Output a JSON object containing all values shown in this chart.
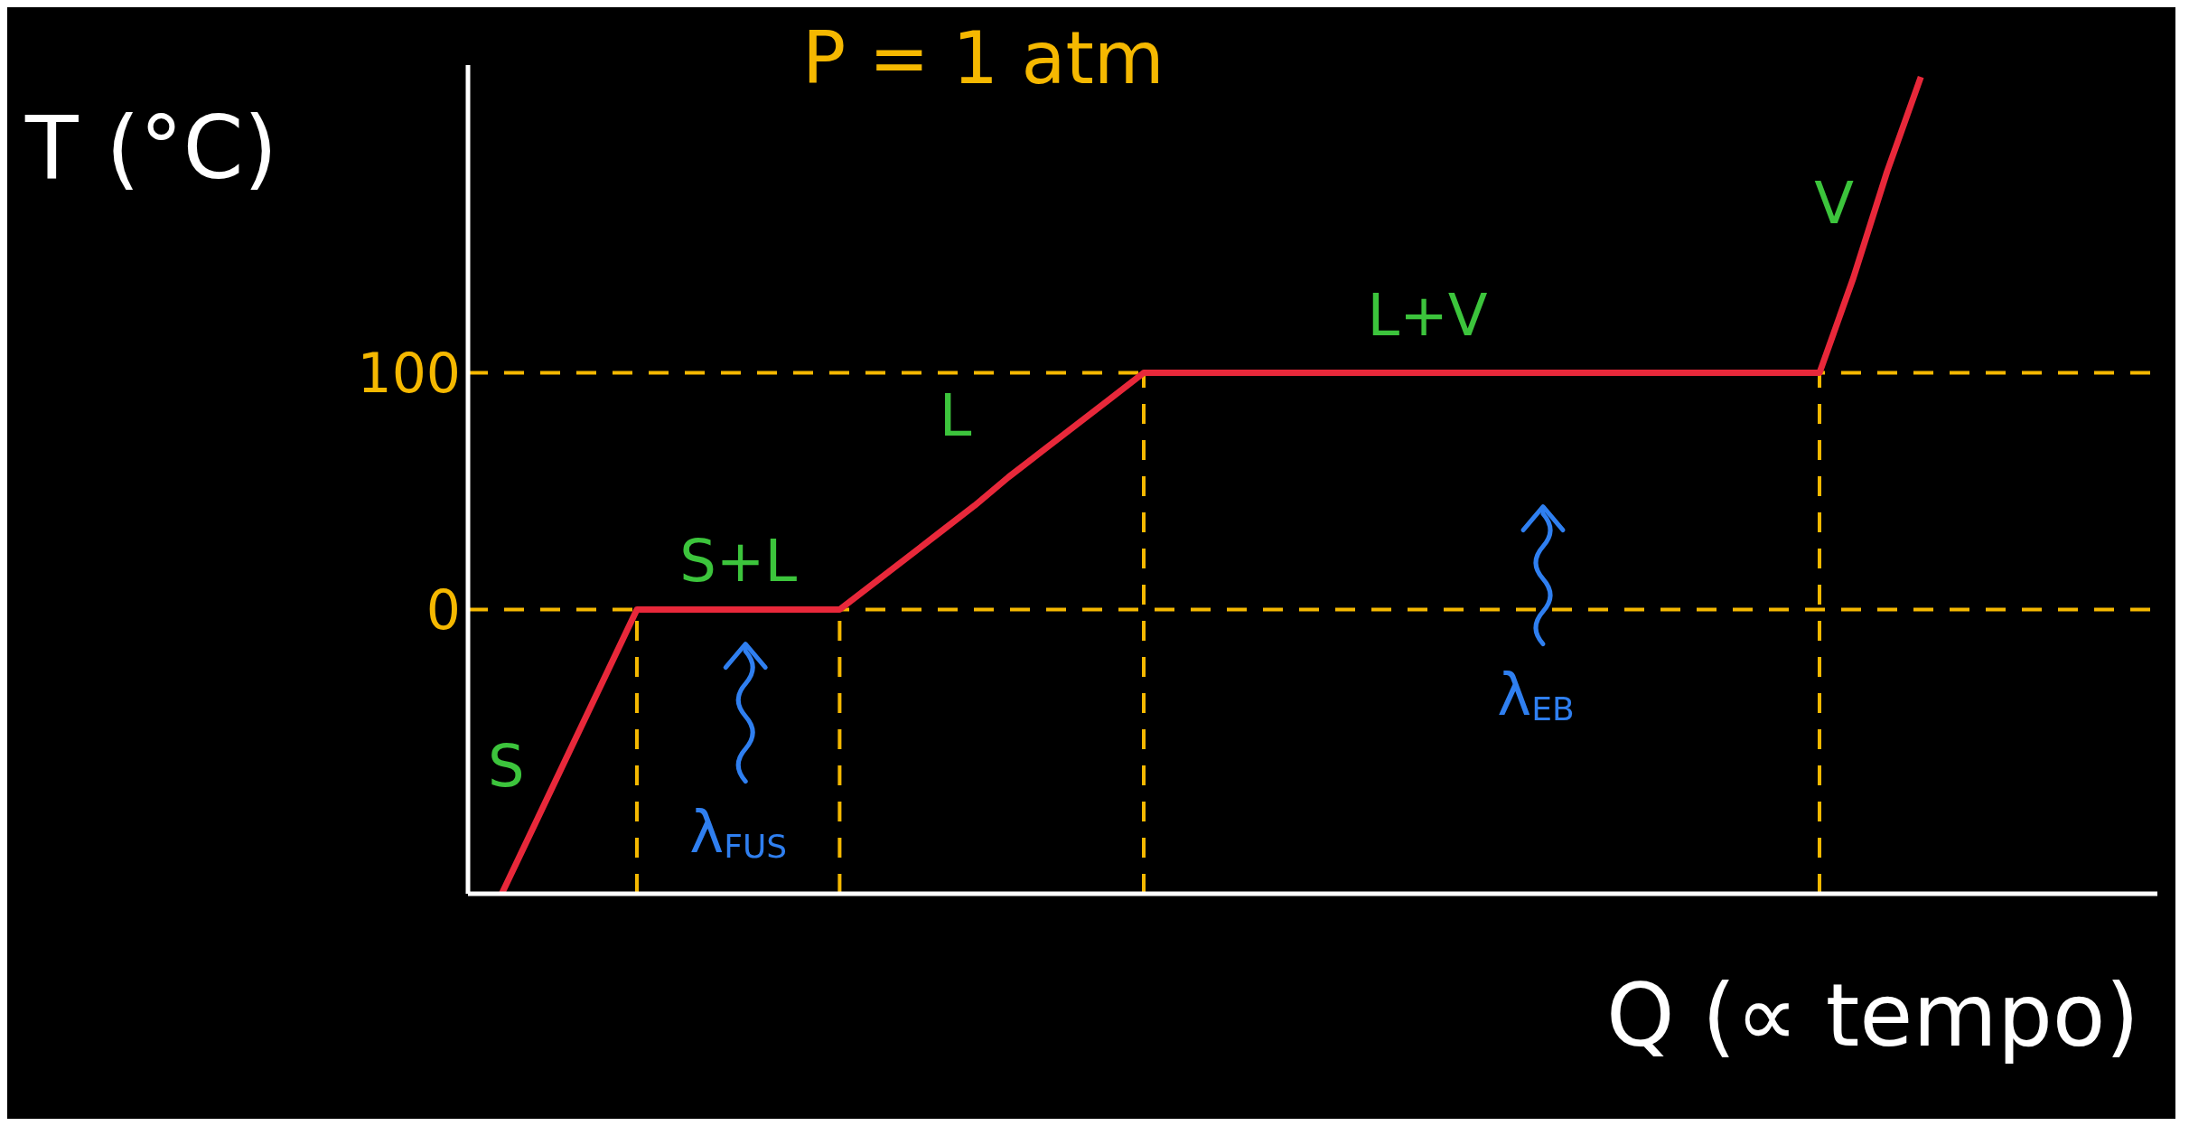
{
  "chart_data": {
    "type": "line",
    "title": "P = 1 atm",
    "xlabel": "Q (∝ tempo)",
    "ylabel": "T (°C)",
    "categories": [
      null,
      null,
      null,
      null,
      null,
      null,
      null,
      null,
      null,
      null,
      null,
      null,
      null,
      null,
      null,
      null,
      null,
      null,
      null,
      null,
      null,
      null,
      null,
      null,
      null,
      null,
      null,
      null,
      null,
      null,
      null,
      null,
      null,
      null,
      null,
      null,
      null,
      null,
      null,
      null,
      null,
      null,
      null,
      null,
      null,
      null,
      null,
      null,
      null,
      null,
      null
    ],
    "series": [
      {
        "color": "#e8283a",
        "values": [
          null,
          -120,
          -90,
          -60,
          -30,
          0,
          0,
          0,
          0,
          0,
          0,
          0,
          11,
          22,
          33,
          44,
          56,
          67,
          78,
          89,
          100,
          100,
          100,
          100,
          100,
          100,
          100,
          100,
          100,
          100,
          100,
          100,
          100,
          100,
          100,
          100,
          100,
          100,
          100,
          100,
          100,
          140,
          185,
          225,
          null,
          null,
          null,
          null,
          null,
          null,
          null
        ]
      }
    ],
    "ylim": [
      -120,
      230
    ],
    "yticks": [
      0,
      100
    ],
    "tick_labels": "y",
    "grid": false,
    "legend": false,
    "marker": "none",
    "line_style": "solid",
    "ref_lines": [
      {
        "axis": "y",
        "value": 0,
        "color": "#f5b800",
        "line_style": "dashed"
      },
      {
        "axis": "y",
        "value": 100,
        "color": "#f5b800",
        "line_style": "dashed"
      }
    ],
    "annotations": [
      "S",
      "S+L",
      "L",
      "L+V",
      "V",
      "λ$_{FUS}$",
      "λ$_{EB}$"
    ]
  }
}
